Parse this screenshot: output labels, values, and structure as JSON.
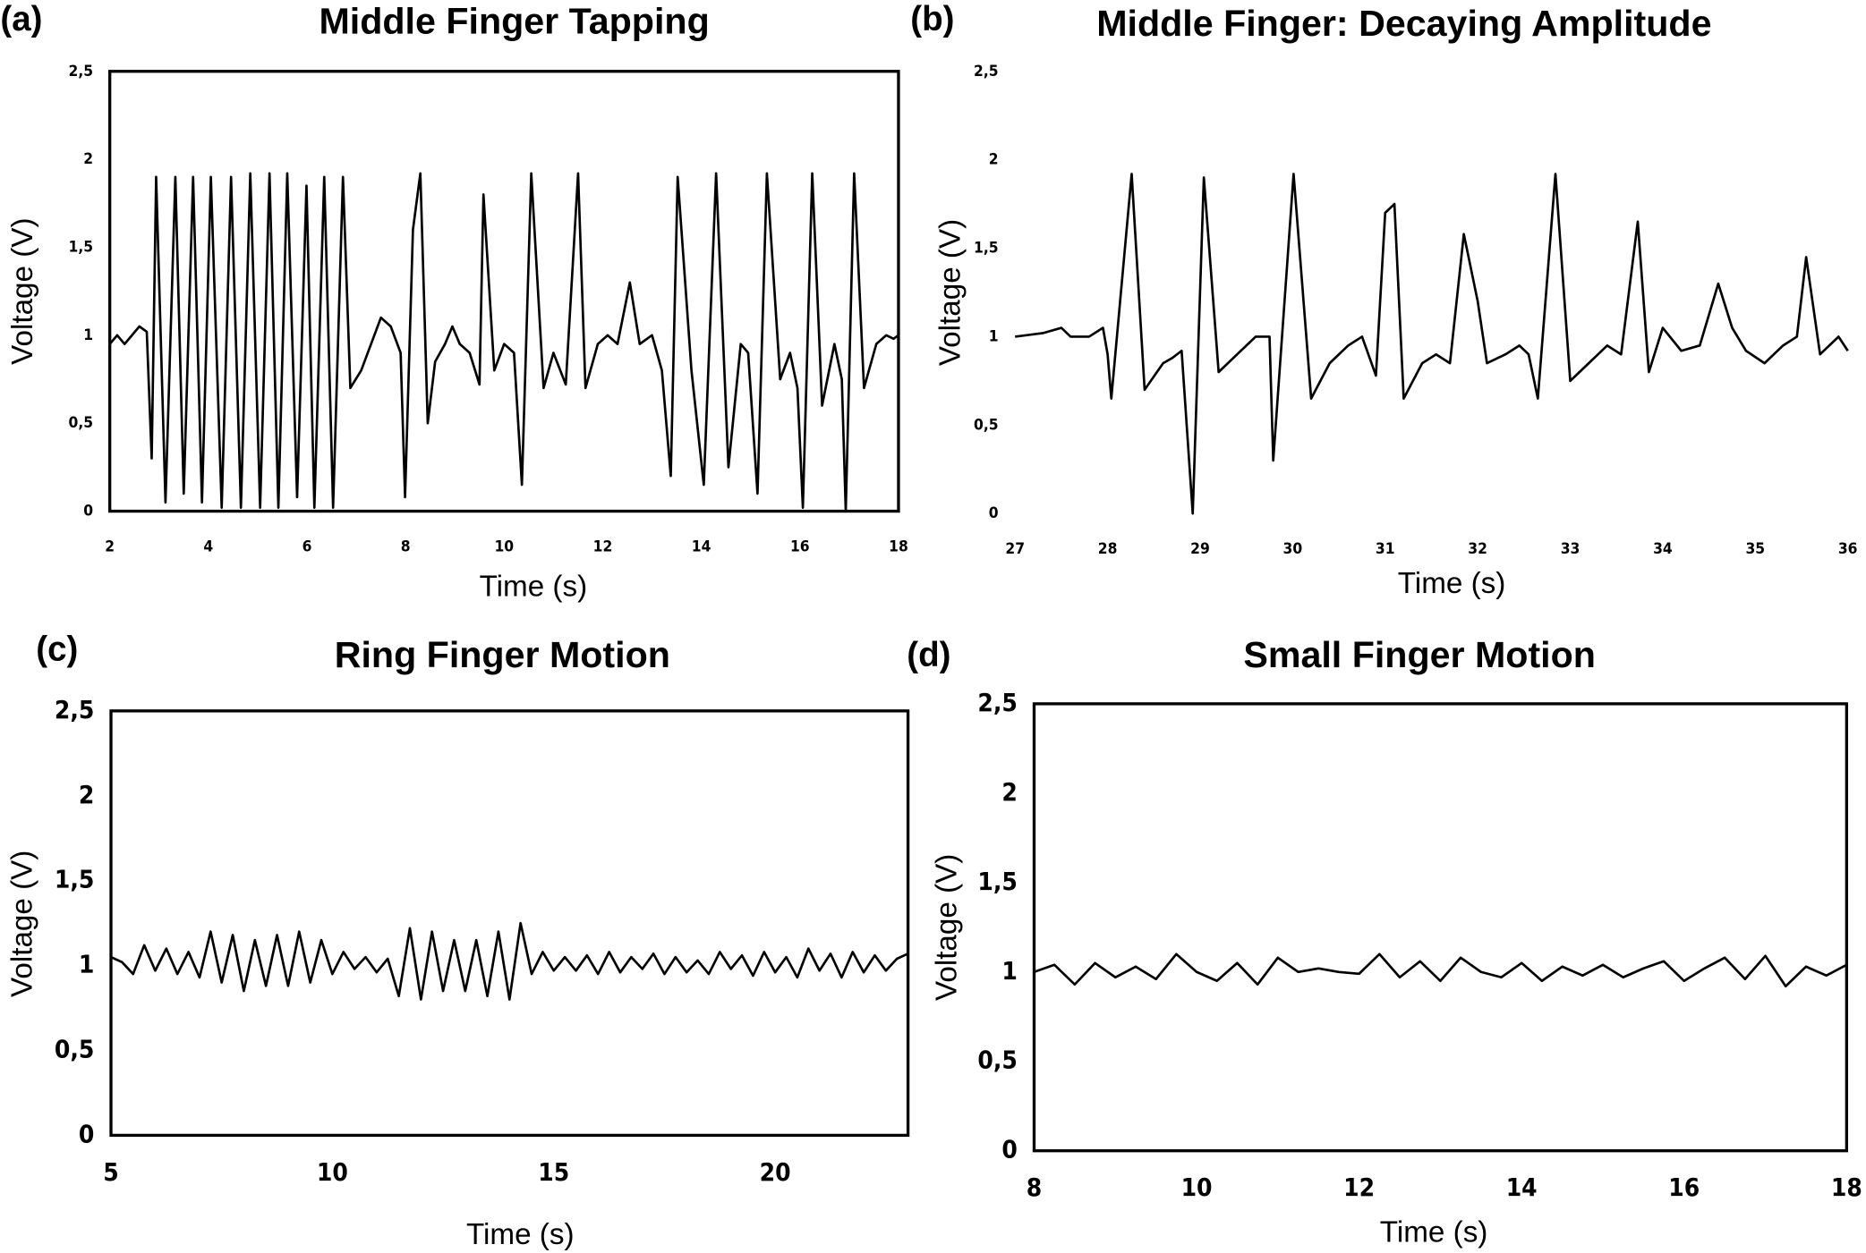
{
  "chart_data": [
    {
      "type": "line",
      "panel": "(a)",
      "title": "Middle Finger Tapping",
      "x_label": "Time (s)",
      "y_label": "Voltage (V)",
      "frame": true,
      "xlim": [
        2,
        18
      ],
      "xticks": [
        2,
        4,
        6,
        8,
        10,
        12,
        14,
        16,
        18
      ],
      "ylim": [
        0,
        2.5
      ],
      "yticks": [
        0,
        {
          "value": 0.5,
          "label": "0,5"
        },
        1,
        {
          "value": 1.5,
          "label": "1,5"
        },
        2,
        {
          "value": 2.5,
          "label": "2,5"
        }
      ],
      "x": [
        2.0,
        2.15,
        2.3,
        2.45,
        2.6,
        2.75,
        2.85,
        2.94,
        3.13,
        3.33,
        3.5,
        3.69,
        3.87,
        4.05,
        4.27,
        4.46,
        4.66,
        4.85,
        5.05,
        5.24,
        5.42,
        5.6,
        5.8,
        5.99,
        6.15,
        6.35,
        6.53,
        6.73,
        6.88,
        7.1,
        7.3,
        7.5,
        7.7,
        7.9,
        7.99,
        8.15,
        8.3,
        8.45,
        8.6,
        8.8,
        8.95,
        9.1,
        9.3,
        9.5,
        9.58,
        9.8,
        10.0,
        10.2,
        10.36,
        10.55,
        10.8,
        11.0,
        11.25,
        11.5,
        11.65,
        11.9,
        12.1,
        12.3,
        12.55,
        12.75,
        13.0,
        13.2,
        13.38,
        13.52,
        13.8,
        14.05,
        14.3,
        14.55,
        14.8,
        14.95,
        15.14,
        15.33,
        15.6,
        15.8,
        15.95,
        16.06,
        16.25,
        16.45,
        16.7,
        16.85,
        16.93,
        17.1,
        17.3,
        17.55,
        17.75,
        17.9,
        18.0
      ],
      "series": [
        {
          "color": "#000000",
          "values": [
            0.95,
            1.0,
            0.95,
            1.0,
            1.05,
            1.02,
            0.3,
            1.9,
            0.05,
            1.9,
            0.1,
            1.9,
            0.05,
            1.9,
            0.02,
            1.9,
            0.02,
            1.92,
            0.02,
            1.92,
            0.02,
            1.92,
            0.08,
            1.85,
            0.02,
            1.9,
            0.02,
            1.9,
            0.7,
            0.8,
            0.95,
            1.1,
            1.05,
            0.9,
            0.08,
            1.6,
            1.92,
            0.5,
            0.85,
            0.95,
            1.05,
            0.95,
            0.9,
            0.72,
            1.8,
            0.8,
            0.95,
            0.9,
            0.15,
            1.92,
            0.7,
            0.9,
            0.72,
            1.92,
            0.7,
            0.95,
            1.0,
            0.95,
            1.3,
            0.95,
            1.0,
            0.8,
            0.2,
            1.9,
            0.8,
            0.15,
            1.92,
            0.25,
            0.95,
            0.9,
            0.1,
            1.92,
            0.75,
            0.9,
            0.7,
            0.02,
            1.92,
            0.6,
            0.95,
            0.75,
            0.0,
            1.92,
            0.7,
            0.95,
            1.0,
            0.98,
            1.0
          ]
        }
      ]
    },
    {
      "type": "line",
      "panel": "(b)",
      "title": "Middle Finger: Decaying Amplitude",
      "x_label": "Time (s)",
      "y_label": "Voltage (V)",
      "frame": false,
      "xlim": [
        27,
        36
      ],
      "xticks": [
        27,
        28,
        29,
        30,
        31,
        32,
        33,
        34,
        35,
        36
      ],
      "ylim": [
        0,
        2.5
      ],
      "yticks": [
        0,
        {
          "value": 0.5,
          "label": "0,5"
        },
        1,
        {
          "value": 1.5,
          "label": "1,5"
        },
        2,
        {
          "value": 2.5,
          "label": "2,5"
        }
      ],
      "x": [
        27.0,
        27.3,
        27.5,
        27.6,
        27.8,
        27.95,
        28.0,
        28.04,
        28.26,
        28.4,
        28.6,
        28.7,
        28.8,
        28.92,
        29.04,
        29.2,
        29.4,
        29.6,
        29.75,
        29.79,
        30.01,
        30.2,
        30.4,
        30.6,
        30.75,
        30.9,
        31.0,
        31.1,
        31.2,
        31.4,
        31.55,
        31.7,
        31.85,
        32.0,
        32.1,
        32.3,
        32.45,
        32.55,
        32.65,
        32.84,
        33.0,
        33.2,
        33.4,
        33.55,
        33.73,
        33.85,
        34.0,
        34.2,
        34.4,
        34.6,
        34.75,
        34.9,
        35.1,
        35.3,
        35.45,
        35.55,
        35.7,
        35.9,
        36.0
      ],
      "series": [
        {
          "color": "#000000",
          "values": [
            1.0,
            1.02,
            1.05,
            1.0,
            1.0,
            1.05,
            0.9,
            0.65,
            1.92,
            0.7,
            0.85,
            0.88,
            0.92,
            0.0,
            1.9,
            0.8,
            0.9,
            1.0,
            1.0,
            0.3,
            1.92,
            0.65,
            0.85,
            0.95,
            1.0,
            0.78,
            1.7,
            1.75,
            0.65,
            0.85,
            0.9,
            0.85,
            1.58,
            1.2,
            0.85,
            0.9,
            0.95,
            0.9,
            0.65,
            1.92,
            0.75,
            0.85,
            0.95,
            0.9,
            1.65,
            0.8,
            1.05,
            0.92,
            0.95,
            1.3,
            1.05,
            0.92,
            0.85,
            0.95,
            1.0,
            1.45,
            0.9,
            1.0,
            0.92
          ]
        }
      ]
    },
    {
      "type": "line",
      "panel": "(c)",
      "title": "Ring Finger Motion",
      "x_label": "Time (s)",
      "y_label": "Voltage (V)",
      "frame": true,
      "xlim": [
        5,
        23
      ],
      "xticks": [
        5,
        10,
        15,
        20
      ],
      "ylim": [
        0,
        2.5
      ],
      "yticks": [
        0,
        {
          "value": 0.5,
          "label": "0,5"
        },
        1,
        {
          "value": 1.5,
          "label": "1,5"
        },
        2,
        {
          "value": 2.5,
          "label": "2,5"
        }
      ],
      "x": [
        5.0,
        5.25,
        5.5,
        5.75,
        6.0,
        6.25,
        6.5,
        6.75,
        7.0,
        7.25,
        7.5,
        7.75,
        8.0,
        8.25,
        8.5,
        8.75,
        9.0,
        9.25,
        9.5,
        9.75,
        10.0,
        10.25,
        10.5,
        10.75,
        11.0,
        11.25,
        11.5,
        11.75,
        12.0,
        12.25,
        12.5,
        12.75,
        13.0,
        13.25,
        13.5,
        13.75,
        14.0,
        14.25,
        14.5,
        14.75,
        15.0,
        15.25,
        15.5,
        15.75,
        16.0,
        16.25,
        16.5,
        16.75,
        17.0,
        17.25,
        17.5,
        17.75,
        18.0,
        18.25,
        18.5,
        18.75,
        19.0,
        19.25,
        19.5,
        19.75,
        20.0,
        20.25,
        20.5,
        20.75,
        21.0,
        21.25,
        21.5,
        21.75,
        22.0,
        22.25,
        22.5,
        22.75,
        23.0
      ],
      "series": [
        {
          "color": "#000000",
          "values": [
            1.05,
            1.02,
            0.95,
            1.12,
            0.97,
            1.1,
            0.95,
            1.08,
            0.93,
            1.2,
            0.9,
            1.18,
            0.85,
            1.15,
            0.88,
            1.18,
            0.88,
            1.2,
            0.9,
            1.15,
            0.95,
            1.08,
            0.98,
            1.05,
            0.96,
            1.04,
            0.82,
            1.22,
            0.8,
            1.2,
            0.85,
            1.15,
            0.85,
            1.15,
            0.82,
            1.2,
            0.8,
            1.25,
            0.95,
            1.08,
            0.97,
            1.05,
            0.97,
            1.06,
            0.95,
            1.08,
            0.96,
            1.05,
            0.98,
            1.07,
            0.95,
            1.05,
            0.96,
            1.03,
            0.95,
            1.08,
            0.98,
            1.06,
            0.94,
            1.08,
            0.96,
            1.05,
            0.93,
            1.1,
            0.97,
            1.07,
            0.93,
            1.08,
            0.96,
            1.06,
            0.97,
            1.04,
            1.07
          ]
        }
      ]
    },
    {
      "type": "line",
      "panel": "(d)",
      "title": "Small Finger Motion",
      "x_label": "Time (s)",
      "y_label": "Voltage (V)",
      "frame": true,
      "xlim": [
        8,
        18
      ],
      "xticks": [
        8,
        10,
        12,
        14,
        16,
        18
      ],
      "ylim": [
        0,
        2.5
      ],
      "yticks": [
        0,
        {
          "value": 0.5,
          "label": "0,5"
        },
        1,
        {
          "value": 1.5,
          "label": "1,5"
        },
        2,
        {
          "value": 2.5,
          "label": "2,5"
        }
      ],
      "x": [
        8.0,
        8.25,
        8.5,
        8.75,
        9.0,
        9.25,
        9.5,
        9.75,
        10.0,
        10.25,
        10.5,
        10.75,
        11.0,
        11.25,
        11.5,
        11.75,
        12.0,
        12.25,
        12.5,
        12.75,
        13.0,
        13.25,
        13.5,
        13.75,
        14.0,
        14.25,
        14.5,
        14.75,
        15.0,
        15.25,
        15.5,
        15.75,
        16.0,
        16.25,
        16.5,
        16.75,
        17.0,
        17.25,
        17.5,
        17.75,
        18.0
      ],
      "series": [
        {
          "color": "#000000",
          "values": [
            1.0,
            1.04,
            0.93,
            1.05,
            0.97,
            1.03,
            0.96,
            1.1,
            1.0,
            0.95,
            1.05,
            0.93,
            1.08,
            1.0,
            1.02,
            1.0,
            0.99,
            1.1,
            0.97,
            1.06,
            0.95,
            1.08,
            1.0,
            0.97,
            1.05,
            0.95,
            1.03,
            0.98,
            1.04,
            0.97,
            1.02,
            1.06,
            0.95,
            1.02,
            1.08,
            0.96,
            1.09,
            0.92,
            1.03,
            0.98,
            1.04
          ]
        }
      ]
    }
  ]
}
